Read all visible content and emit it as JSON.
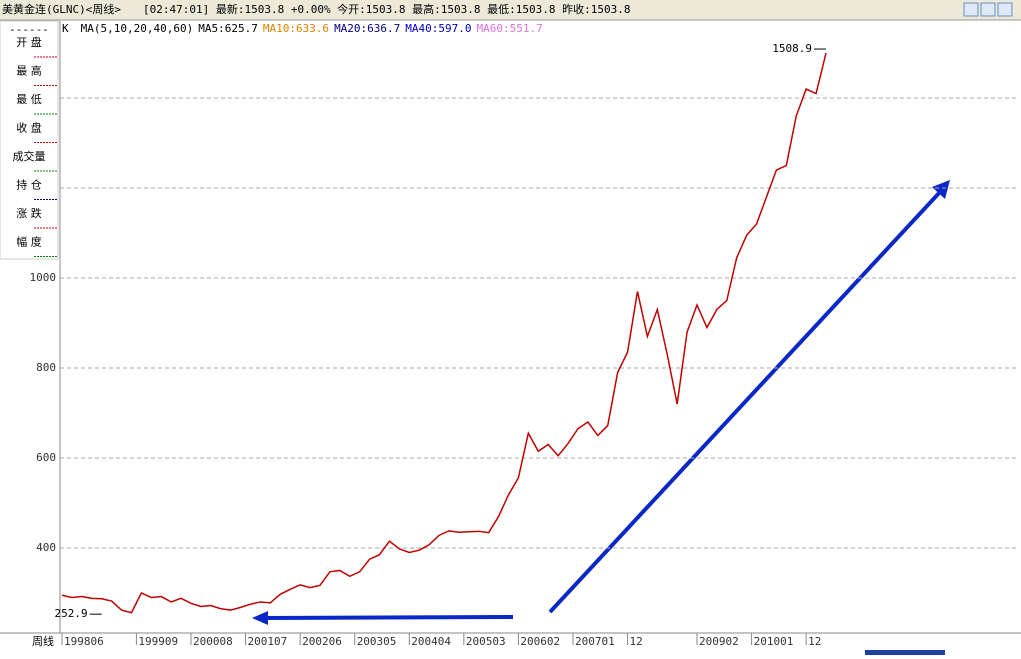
{
  "header": {
    "title": "美黄金连(GLNC)<周线>",
    "quote": "[02:47:01] 最新:1503.8 +0.00% 今开:1503.8 最高:1503.8 最低:1503.8 昨收:1503.8"
  },
  "info_panel": {
    "dashes": "------",
    "labels": [
      "开 盘",
      "最 高",
      "最 低",
      "收 盘",
      "成交量",
      "持 仓",
      "涨 跌",
      "幅 度"
    ],
    "colors": [
      "#c00000",
      "#c00000",
      "#008000",
      "#c00000",
      "#008000",
      "#000080",
      "#c00000",
      "#008000"
    ]
  },
  "ma_legend": {
    "items": [
      {
        "text": "K",
        "color": "#000000"
      },
      {
        "text": "MA(5,10,20,40,60)",
        "color": "#000000"
      },
      {
        "text": "MA5:625.7",
        "color": "#000000"
      },
      {
        "text": "MA10:633.6",
        "color": "#e08000"
      },
      {
        "text": "MA20:636.7",
        "color": "#000080"
      },
      {
        "text": "MA40:597.0",
        "color": "#0000c0"
      },
      {
        "text": "MA60:551.7",
        "color": "#e070e0"
      }
    ]
  },
  "chart_data": {
    "type": "line",
    "x": [
      0,
      2,
      4,
      6,
      8,
      10,
      12,
      14,
      16,
      18,
      20,
      22,
      24,
      26,
      28,
      30,
      32,
      34,
      36,
      38,
      40,
      42,
      44,
      46,
      48,
      50,
      52,
      54,
      56,
      58,
      60,
      62,
      64,
      66,
      68,
      70,
      72,
      74,
      76,
      78,
      80,
      82,
      84,
      86,
      88,
      90,
      92,
      94,
      96,
      98,
      100,
      102,
      104,
      106,
      108,
      110,
      112,
      114,
      116,
      118,
      120,
      122,
      124,
      126,
      128,
      130,
      132,
      134,
      136,
      138,
      140,
      142,
      144,
      146,
      148,
      150,
      152,
      154
    ],
    "values": [
      295,
      290,
      292,
      288,
      287,
      282,
      262,
      256,
      300,
      290,
      292,
      280,
      288,
      277,
      270,
      272,
      265,
      262,
      268,
      275,
      280,
      278,
      297,
      308,
      318,
      312,
      317,
      347,
      350,
      337,
      347,
      375,
      385,
      415,
      398,
      390,
      395,
      407,
      428,
      438,
      435,
      436,
      437,
      434,
      470,
      518,
      556,
      655,
      615,
      630,
      605,
      632,
      665,
      680,
      650,
      672,
      790,
      835,
      970,
      870,
      930,
      830,
      720,
      880,
      940,
      890,
      930,
      950,
      1045,
      1095,
      1120,
      1180,
      1240,
      1250,
      1360,
      1420,
      1410,
      1500
    ],
    "color": "#c00000",
    "xlim": [
      -0.4,
      192.7
    ],
    "xticks": [
      {
        "value": 0,
        "label": "199806"
      },
      {
        "value": 15,
        "label": "199909"
      },
      {
        "value": 26,
        "label": "200008"
      },
      {
        "value": 37,
        "label": "200107"
      },
      {
        "value": 48,
        "label": "200206"
      },
      {
        "value": 59,
        "label": "200305"
      },
      {
        "value": 70,
        "label": "200404"
      },
      {
        "value": 81,
        "label": "200503"
      },
      {
        "value": 92,
        "label": "200602"
      },
      {
        "value": 103,
        "label": "200701"
      },
      {
        "value": 114,
        "label": "12"
      },
      {
        "value": 128,
        "label": "200902"
      },
      {
        "value": 139,
        "label": "201001"
      },
      {
        "value": 150,
        "label": "12"
      }
    ],
    "x_axis_label": "周线",
    "ylim": [
      211,
      1569
    ],
    "yticks": [
      400,
      600,
      800,
      1000,
      {
        "value": 1200,
        "label": null
      },
      {
        "value": 1400,
        "label": null
      }
    ],
    "grid": true,
    "annotations": [
      {
        "text": "1508.9",
        "x": 154,
        "y": 1508.9
      },
      {
        "text": "252.9",
        "x": 8,
        "y": 252.9
      }
    ]
  }
}
